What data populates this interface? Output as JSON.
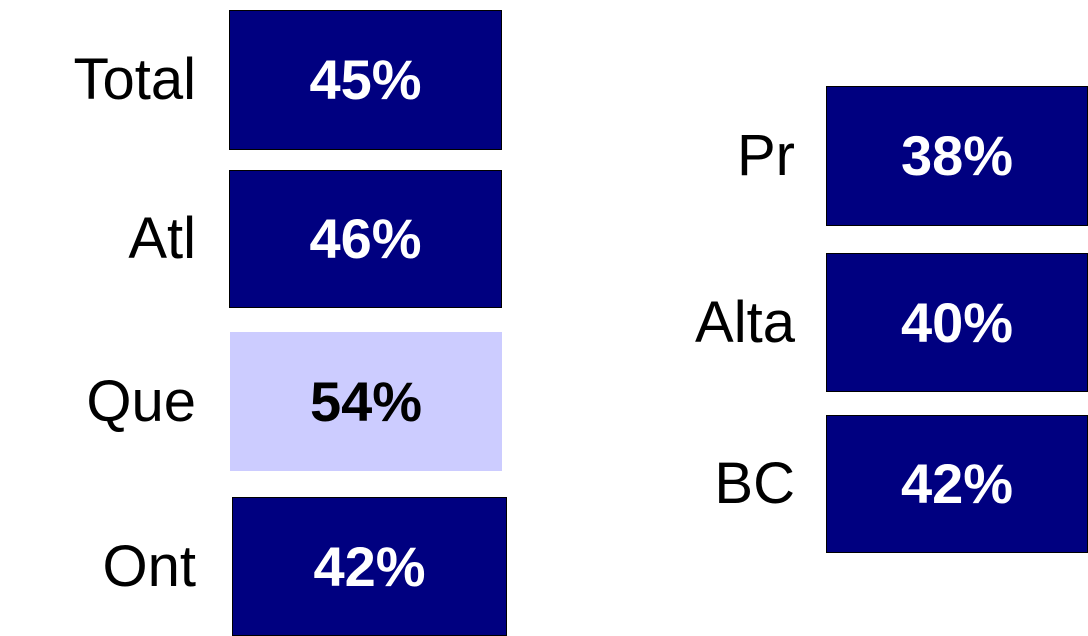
{
  "groups": [
    {
      "items": [
        {
          "label": "Total",
          "value": "45%",
          "color": "#000080",
          "text_color": "#ffffff"
        },
        {
          "label": "Atl",
          "value": "46%",
          "color": "#000080",
          "text_color": "#ffffff"
        },
        {
          "label": "Que",
          "value": "54%",
          "color": "#ccccff",
          "text_color": "#000000"
        },
        {
          "label": "Ont",
          "value": "42%",
          "color": "#000080",
          "text_color": "#ffffff"
        }
      ]
    },
    {
      "items": [
        {
          "label": "Pr",
          "value": "38%",
          "color": "#000080",
          "text_color": "#ffffff"
        },
        {
          "label": "Alta",
          "value": "40%",
          "color": "#000080",
          "text_color": "#ffffff"
        },
        {
          "label": "BC",
          "value": "42%",
          "color": "#000080",
          "text_color": "#ffffff"
        }
      ]
    }
  ]
}
